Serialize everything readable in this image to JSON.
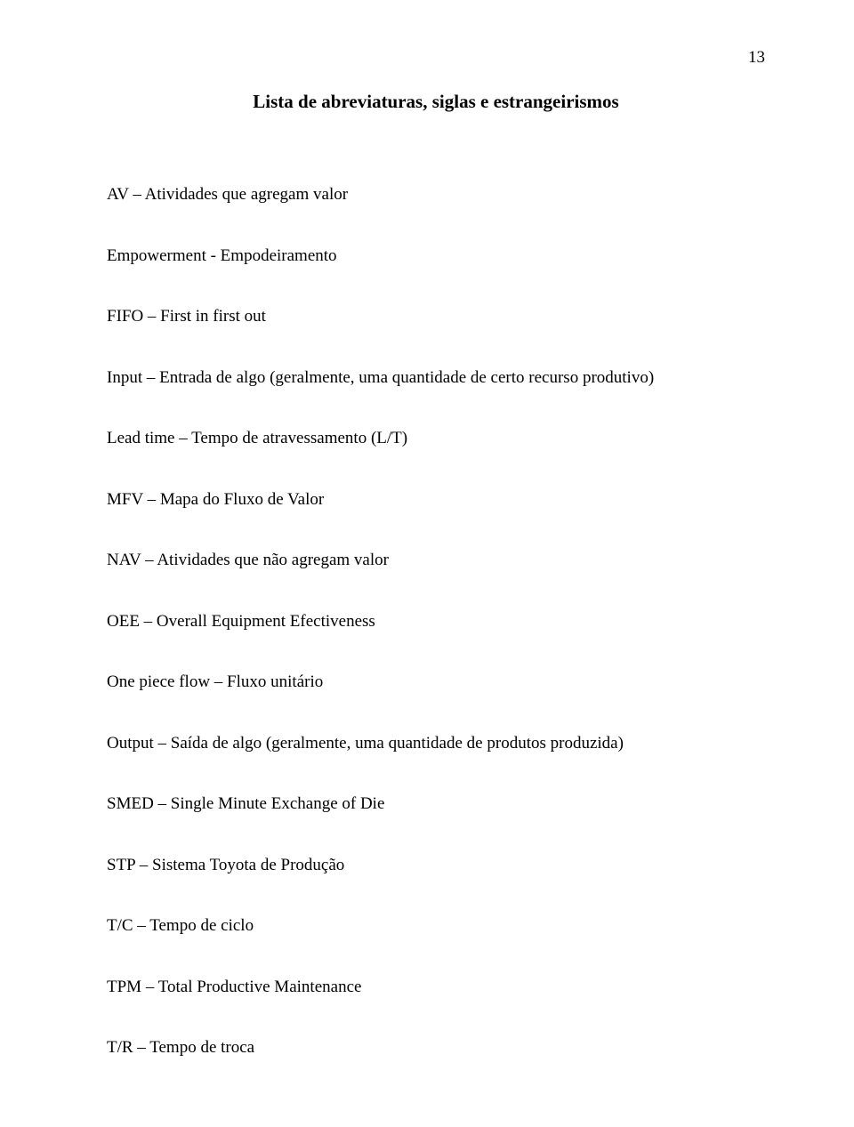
{
  "page_number": "13",
  "title": "Lista de abreviaturas, siglas e estrangeirismos",
  "entries": [
    "AV – Atividades que agregam valor",
    "Empowerment - Empodeiramento",
    "FIFO – First in first out",
    "Input – Entrada de algo (geralmente, uma quantidade de certo recurso produtivo)",
    "Lead time – Tempo de atravessamento (L/T)",
    "MFV – Mapa do Fluxo de Valor",
    "NAV – Atividades que não agregam valor",
    "OEE – Overall Equipment Efectiveness",
    "One piece flow – Fluxo unitário",
    "Output – Saída de algo (geralmente, uma quantidade de produtos produzida)",
    "SMED – Single Minute Exchange of Die",
    "STP – Sistema Toyota de Produção",
    "T/C – Tempo de ciclo",
    "TPM – Total Productive Maintenance",
    "T/R – Tempo de troca"
  ]
}
